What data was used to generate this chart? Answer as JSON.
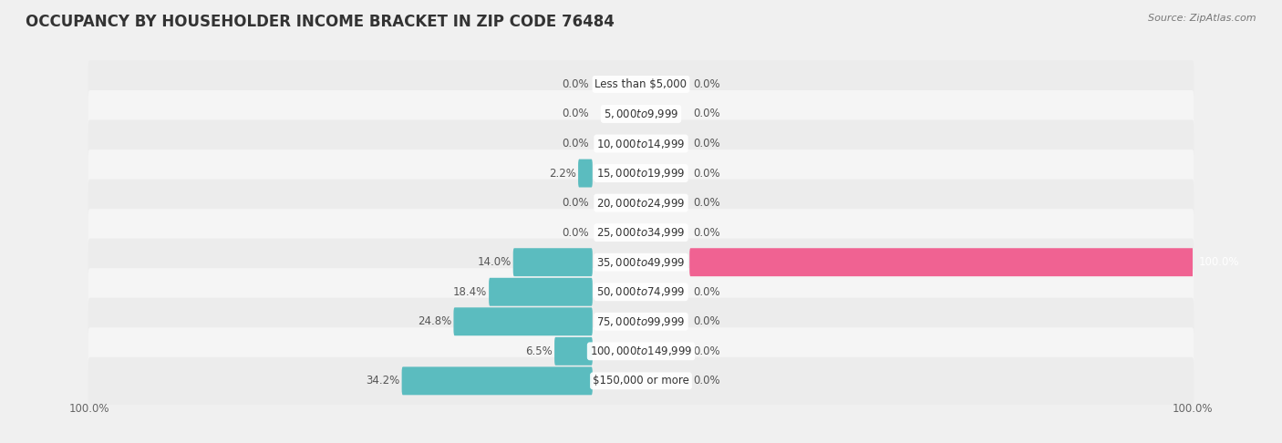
{
  "title": "OCCUPANCY BY HOUSEHOLDER INCOME BRACKET IN ZIP CODE 76484",
  "source": "Source: ZipAtlas.com",
  "categories": [
    "Less than $5,000",
    "$5,000 to $9,999",
    "$10,000 to $14,999",
    "$15,000 to $19,999",
    "$20,000 to $24,999",
    "$25,000 to $34,999",
    "$35,000 to $49,999",
    "$50,000 to $74,999",
    "$75,000 to $99,999",
    "$100,000 to $149,999",
    "$150,000 or more"
  ],
  "owner_values": [
    0.0,
    0.0,
    0.0,
    2.2,
    0.0,
    0.0,
    14.0,
    18.4,
    24.8,
    6.5,
    34.2
  ],
  "renter_values": [
    0.0,
    0.0,
    0.0,
    0.0,
    0.0,
    0.0,
    100.0,
    0.0,
    0.0,
    0.0,
    0.0
  ],
  "owner_color": "#5bbcbf",
  "renter_color": "#f06292",
  "renter_color_light": "#f8bbd9",
  "row_colors": [
    "#ececec",
    "#f5f5f5"
  ],
  "title_fontsize": 12,
  "label_fontsize": 8.5,
  "value_fontsize": 8.5,
  "tick_fontsize": 8.5,
  "source_fontsize": 8,
  "background_color": "#f0f0f0"
}
